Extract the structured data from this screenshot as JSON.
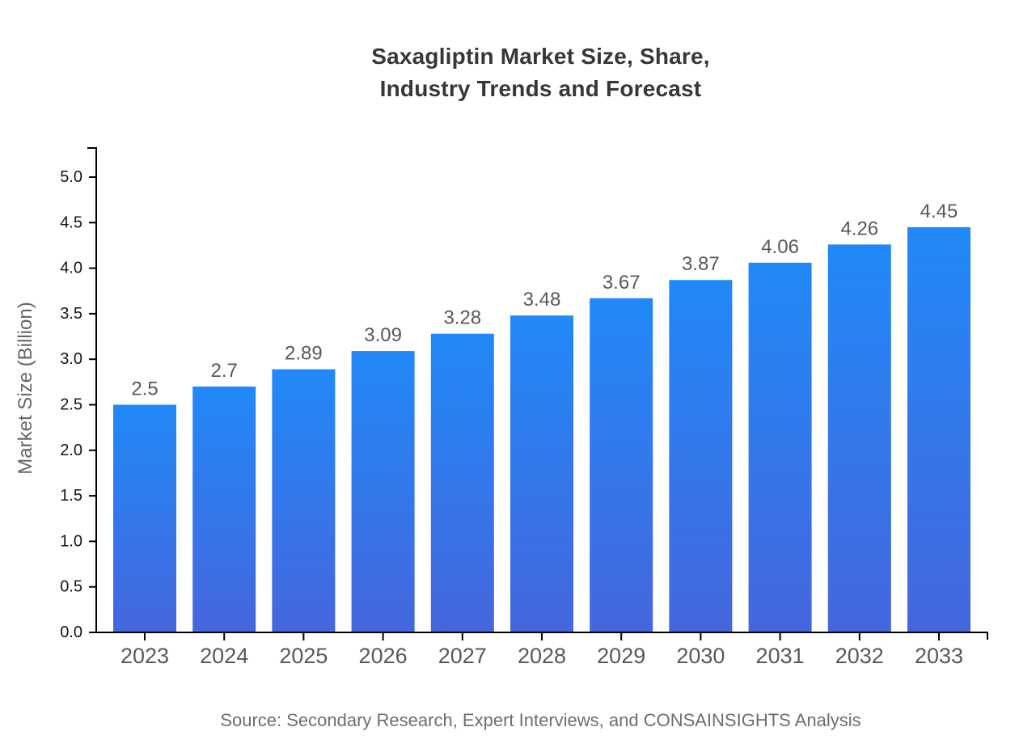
{
  "page": {
    "title_line1": "Saxagliptin Market Size, Share,",
    "title_line2": "Industry Trends and Forecast",
    "source": "Source: Secondary Research, Expert Interviews, and CONSAINSIGHTS Analysis"
  },
  "chart_data": {
    "type": "bar",
    "title": "Saxagliptin Market Size, Share, Industry Trends and Forecast",
    "xlabel": "",
    "ylabel": "Market Size (Billion)",
    "categories": [
      "2023",
      "2024",
      "2025",
      "2026",
      "2027",
      "2028",
      "2029",
      "2030",
      "2031",
      "2032",
      "2033"
    ],
    "values": [
      2.5,
      2.7,
      2.89,
      3.09,
      3.28,
      3.48,
      3.67,
      3.87,
      4.06,
      4.26,
      4.45
    ],
    "value_labels": [
      "2.5",
      "2.7",
      "2.89",
      "3.09",
      "3.28",
      "3.48",
      "3.67",
      "3.87",
      "4.06",
      "4.26",
      "4.45"
    ],
    "yticks": [
      0.0,
      0.5,
      1.0,
      1.5,
      2.0,
      2.5,
      3.0,
      3.5,
      4.0,
      4.5,
      5.0
    ],
    "ytick_labels": [
      "0.0",
      "0.5",
      "1.0",
      "1.5",
      "2.0",
      "2.5",
      "3.0",
      "3.5",
      "4.0",
      "4.5",
      "5.0"
    ],
    "ylim": [
      0,
      5.35
    ],
    "grid": false,
    "legend": null,
    "source": "Source: Secondary Research, Expert Interviews, and CONSAINSIGHTS Analysis",
    "colors": {
      "bar_gradient_top": "#2189F8",
      "bar_gradient_bottom": "#4566DD",
      "axis": "#000000",
      "ytick_label": "#151515",
      "category_label": "#58595B",
      "value_label": "#57595C",
      "title": "#373737",
      "ylabel": "#666666",
      "source": "#6E6E6E",
      "background": "#FFFFFF"
    }
  }
}
